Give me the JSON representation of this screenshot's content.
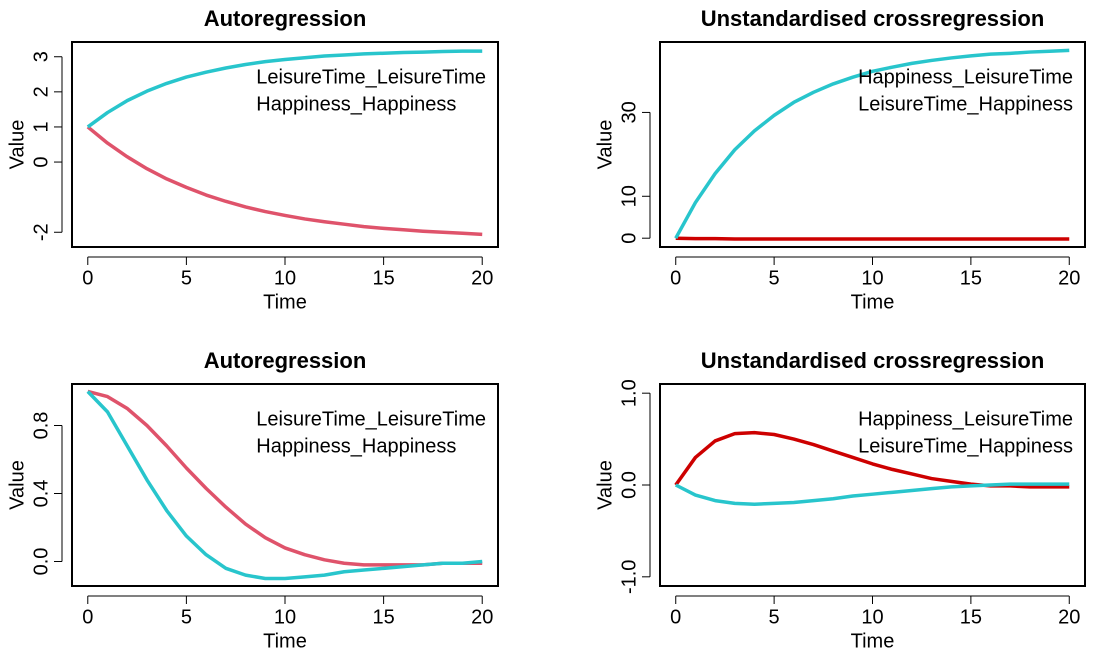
{
  "chart_data": [
    {
      "type": "line",
      "title": "Autoregression",
      "xlabel": "Time",
      "ylabel": "Value",
      "x": [
        0,
        1,
        2,
        3,
        4,
        5,
        6,
        7,
        8,
        9,
        10,
        11,
        12,
        13,
        14,
        15,
        16,
        17,
        18,
        19,
        20
      ],
      "series": [
        {
          "name": "LeisureTime_LeisureTime",
          "color": "#DF536B",
          "legend_color": "#CD0000",
          "values": [
            1.0,
            0.54,
            0.15,
            -0.19,
            -0.48,
            -0.72,
            -0.94,
            -1.12,
            -1.28,
            -1.41,
            -1.52,
            -1.62,
            -1.7,
            -1.77,
            -1.84,
            -1.89,
            -1.93,
            -1.97,
            -2.0,
            -2.03,
            -2.06
          ]
        },
        {
          "name": "Happiness_Happiness",
          "color": "#28C5CC",
          "legend_color": "#28C5CC",
          "values": [
            1.0,
            1.41,
            1.75,
            2.02,
            2.24,
            2.42,
            2.56,
            2.68,
            2.78,
            2.86,
            2.92,
            2.97,
            3.02,
            3.05,
            3.08,
            3.1,
            3.12,
            3.13,
            3.15,
            3.16,
            3.16
          ]
        }
      ],
      "xlim": [
        -0.8,
        20.8
      ],
      "xticks": [
        0,
        5,
        10,
        15,
        20
      ],
      "ylim": [
        -2.42,
        3.42
      ],
      "yticks": [
        -2,
        0,
        1,
        2,
        3
      ],
      "legend": "topright"
    },
    {
      "type": "line",
      "title": "Unstandardised crossregression",
      "xlabel": "Time",
      "ylabel": "Value",
      "x": [
        0,
        1,
        2,
        3,
        4,
        5,
        6,
        7,
        8,
        9,
        10,
        11,
        12,
        13,
        14,
        15,
        16,
        17,
        18,
        19,
        20
      ],
      "series": [
        {
          "name": "Happiness_LeisureTime",
          "color": "#CD0000",
          "legend_color": "#CD0000",
          "values": [
            0,
            -0.1,
            -0.1,
            -0.2,
            -0.2,
            -0.2,
            -0.2,
            -0.2,
            -0.2,
            -0.2,
            -0.2,
            -0.2,
            -0.2,
            -0.2,
            -0.2,
            -0.2,
            -0.2,
            -0.2,
            -0.2,
            -0.2,
            -0.2
          ]
        },
        {
          "name": "LeisureTime_Happiness",
          "color": "#28C5CC",
          "legend_color": "#28C5CC",
          "values": [
            0,
            8.5,
            15.4,
            21.1,
            25.6,
            29.3,
            32.4,
            34.8,
            36.8,
            38.4,
            39.8,
            40.8,
            41.7,
            42.4,
            43.0,
            43.5,
            43.9,
            44.1,
            44.4,
            44.6,
            44.8
          ]
        }
      ],
      "xlim": [
        -0.8,
        20.8
      ],
      "xticks": [
        0,
        5,
        10,
        15,
        20
      ],
      "ylim": [
        -2.1,
        46.8
      ],
      "yticks": [
        0,
        10,
        30
      ],
      "legend": "topright"
    },
    {
      "type": "line",
      "title": "Autoregression",
      "xlabel": "Time",
      "ylabel": "Value",
      "x": [
        0,
        1,
        2,
        3,
        4,
        5,
        6,
        7,
        8,
        9,
        10,
        11,
        12,
        13,
        14,
        15,
        16,
        17,
        18,
        19,
        20
      ],
      "series": [
        {
          "name": "LeisureTime_LeisureTime",
          "color": "#DF536B",
          "legend_color": "#CD0000",
          "values": [
            1.0,
            0.97,
            0.9,
            0.8,
            0.68,
            0.55,
            0.43,
            0.32,
            0.22,
            0.14,
            0.08,
            0.04,
            0.01,
            -0.01,
            -0.02,
            -0.02,
            -0.02,
            -0.02,
            -0.01,
            -0.01,
            -0.01
          ]
        },
        {
          "name": "Happiness_Happiness",
          "color": "#28C5CC",
          "legend_color": "#28C5CC",
          "values": [
            1.0,
            0.88,
            0.68,
            0.48,
            0.3,
            0.15,
            0.04,
            -0.04,
            -0.08,
            -0.1,
            -0.1,
            -0.09,
            -0.08,
            -0.06,
            -0.05,
            -0.04,
            -0.03,
            -0.02,
            -0.01,
            -0.01,
            0.0
          ]
        }
      ],
      "xlim": [
        -0.8,
        20.8
      ],
      "xticks": [
        0,
        5,
        10,
        15,
        20
      ],
      "ylim": [
        -0.144,
        1.044
      ],
      "yticks": [
        {
          "value": 0,
          "label": "0.0"
        },
        {
          "value": 0.4,
          "label": "0.4"
        },
        {
          "value": 0.8,
          "label": "0.8"
        }
      ],
      "legend": "topright"
    },
    {
      "type": "line",
      "title": "Unstandardised crossregression",
      "xlabel": "Time",
      "ylabel": "Value",
      "x": [
        0,
        1,
        2,
        3,
        4,
        5,
        6,
        7,
        8,
        9,
        10,
        11,
        12,
        13,
        14,
        15,
        16,
        17,
        18,
        19,
        20
      ],
      "series": [
        {
          "name": "Happiness_LeisureTime",
          "color": "#CD0000",
          "legend_color": "#CD0000",
          "values": [
            0,
            0.3,
            0.48,
            0.56,
            0.57,
            0.55,
            0.5,
            0.44,
            0.37,
            0.3,
            0.23,
            0.17,
            0.12,
            0.07,
            0.04,
            0.01,
            -0.01,
            -0.01,
            -0.02,
            -0.02,
            -0.02
          ]
        },
        {
          "name": "LeisureTime_Happiness",
          "color": "#28C5CC",
          "legend_color": "#28C5CC",
          "values": [
            0,
            -0.11,
            -0.17,
            -0.2,
            -0.21,
            -0.2,
            -0.19,
            -0.17,
            -0.15,
            -0.12,
            -0.1,
            -0.08,
            -0.06,
            -0.04,
            -0.02,
            -0.01,
            0,
            0.01,
            0.01,
            0.01,
            0.01
          ]
        }
      ],
      "xlim": [
        -0.8,
        20.8
      ],
      "xticks": [
        0,
        5,
        10,
        15,
        20
      ],
      "ylim": [
        -1.1,
        1.1
      ],
      "yticks": [
        {
          "value": -1,
          "label": "-1.0"
        },
        {
          "value": 0,
          "label": "0.0"
        },
        {
          "value": 1,
          "label": "1.0"
        }
      ],
      "legend": "topright"
    }
  ]
}
